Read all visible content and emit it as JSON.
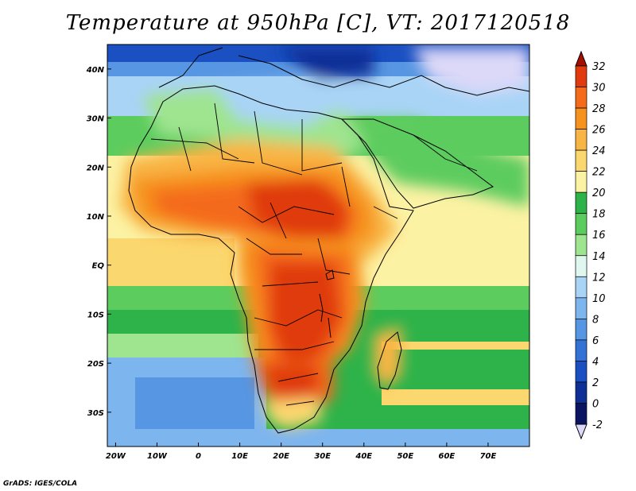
{
  "title": "Temperature at 950hPa [C], VT: 2017120518",
  "credit": "GrADS: IGES/COLA",
  "map": {
    "lon_range": [
      -22,
      80
    ],
    "lat_range": [
      -37,
      45
    ],
    "lon_ticks": [
      "20W",
      "10W",
      "0",
      "10E",
      "20E",
      "30E",
      "40E",
      "50E",
      "60E",
      "70E"
    ],
    "lat_ticks": [
      "40N",
      "30N",
      "20N",
      "10N",
      "EQ",
      "10S",
      "20S",
      "30S"
    ]
  },
  "colorbar": {
    "labels": [
      "32",
      "30",
      "28",
      "26",
      "24",
      "22",
      "20",
      "18",
      "16",
      "14",
      "12",
      "10",
      "8",
      "6",
      "4",
      "2",
      "0",
      "-2"
    ],
    "colors": [
      "#a50f00",
      "#e03a0e",
      "#f46b1b",
      "#f6921e",
      "#f8b545",
      "#fbd76f",
      "#fcf2a4",
      "#2db34a",
      "#5dcc5e",
      "#9fe48f",
      "#dff7ee",
      "#a9d4f6",
      "#7db5ee",
      "#5796e2",
      "#3472d6",
      "#1a50c2",
      "#0d2f96",
      "#0a1460",
      "#dcd8f8"
    ]
  }
}
